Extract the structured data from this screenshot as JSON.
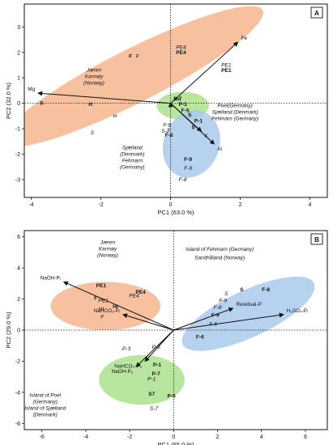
{
  "chart_data": [
    {
      "type": "scatter",
      "panel_label": "A",
      "xlabel": "PC1 (63.0 %)",
      "ylabel": "PC2 (32.0 %)",
      "xlim": [
        -4.2,
        4.5
      ],
      "ylim": [
        -3.7,
        3.9
      ],
      "xticks": [
        -4,
        -2,
        0,
        2,
        4
      ],
      "yticks": [
        3,
        2,
        1,
        0,
        -1,
        -2,
        -3
      ],
      "ellipses": [
        {
          "color": "#f5b38a",
          "cx": -1.1,
          "cy": 1.05,
          "rx": 4.2,
          "ry": 1.05,
          "angle_deg": 27
        },
        {
          "color": "#a8e08a",
          "cx": 0.35,
          "cy": -0.1,
          "rx": 0.75,
          "ry": 0.55,
          "angle_deg": 0
        },
        {
          "color": "#a6c8ec",
          "cx": 0.6,
          "cy": -1.6,
          "rx": 0.8,
          "ry": 1.35,
          "angle_deg": -20
        }
      ],
      "loadings": [
        {
          "label": "Fe",
          "x": 1.93,
          "y": 2.4
        },
        {
          "label": "Mg",
          "x": -3.8,
          "y": 0.4
        },
        {
          "label": "Mn",
          "x": 0.0,
          "y": 0.01
        },
        {
          "label": "K",
          "x": 0.88,
          "y": -1.1
        },
        {
          "label": "Al",
          "x": 1.25,
          "y": -1.6
        }
      ],
      "scores": [
        {
          "label": "F",
          "x": -1.15,
          "y": 1.85,
          "bold": true,
          "italic": false
        },
        {
          "label": "F",
          "x": -0.95,
          "y": 1.85,
          "bold": false,
          "italic": true
        },
        {
          "label": "PE4",
          "x": 0.3,
          "y": 2.2,
          "bold": false,
          "italic": true
        },
        {
          "label": "PE4",
          "x": 0.3,
          "y": 2.0,
          "bold": true,
          "italic": false
        },
        {
          "label": "PE1",
          "x": 1.6,
          "y": 1.5,
          "bold": false,
          "italic": true
        },
        {
          "label": "PE1",
          "x": 1.6,
          "y": 1.3,
          "bold": true,
          "italic": false
        },
        {
          "label": "S",
          "x": -3.7,
          "y": 0.0,
          "bold": true,
          "italic": false
        },
        {
          "label": "H",
          "x": -2.3,
          "y": -0.05,
          "bold": true,
          "italic": false
        },
        {
          "label": "H",
          "x": -1.6,
          "y": -0.5,
          "bold": false,
          "italic": true
        },
        {
          "label": "S",
          "x": -2.25,
          "y": -1.15,
          "bold": false,
          "italic": true
        },
        {
          "label": "S-7",
          "x": 0.2,
          "y": 0.18,
          "bold": true,
          "italic": false
        },
        {
          "label": "P-3",
          "x": 0.35,
          "y": -0.05,
          "bold": true,
          "italic": false
        },
        {
          "label": "F-5",
          "x": 0.42,
          "y": -0.28,
          "bold": true,
          "italic": false
        },
        {
          "label": "S",
          "x": 0.55,
          "y": -0.45,
          "bold": true,
          "italic": false
        },
        {
          "label": "P-1",
          "x": 0.8,
          "y": -0.7,
          "bold": true,
          "italic": false
        },
        {
          "label": "5",
          "x": 0.65,
          "y": -0.95,
          "bold": true,
          "italic": false
        },
        {
          "label": "F-6",
          "x": -0.1,
          "y": -0.85,
          "bold": false,
          "italic": true
        },
        {
          "label": "S-7",
          "x": -0.15,
          "y": -1.1,
          "bold": false,
          "italic": true
        },
        {
          "label": "F-8",
          "x": -0.05,
          "y": -1.25,
          "bold": true,
          "italic": false
        },
        {
          "label": "F-9",
          "x": 0.5,
          "y": -2.2,
          "bold": true,
          "italic": false
        },
        {
          "label": "F-9",
          "x": 0.5,
          "y": -2.55,
          "bold": false,
          "italic": true
        },
        {
          "label": "F-8",
          "x": 0.35,
          "y": -3.0,
          "bold": false,
          "italic": true
        }
      ],
      "group_labels": [
        {
          "lines": [
            "Jæren",
            "Karmøy",
            "(Norway)"
          ],
          "x": -2.2,
          "y": 1.25,
          "italic": true,
          "bold": false
        },
        {
          "lines": [
            "Poel(Germany)",
            "Sjælland (Denmark)",
            "Fehmarn (Germany)"
          ],
          "x": 1.85,
          "y": -0.15,
          "italic": true,
          "bold": false
        },
        {
          "lines": [
            "Sjælland",
            "(Denmark)",
            "Fehmarn",
            "(Germany)"
          ],
          "x": -1.1,
          "y": -1.8,
          "italic": true,
          "bold": false
        }
      ]
    },
    {
      "type": "scatter",
      "panel_label": "B",
      "xlabel": "PC1 (65.0 %)",
      "ylabel": "PC2 (29.0 %)",
      "xlim": [
        -6.8,
        7.0
      ],
      "ylim": [
        -6.4,
        6.4
      ],
      "xticks": [
        -6,
        -4,
        -2,
        0,
        2,
        4,
        6
      ],
      "yticks": [
        6,
        4,
        2,
        0,
        -2,
        -4,
        -6
      ],
      "ellipses": [
        {
          "color": "#f5b38a",
          "cx": -3.1,
          "cy": 1.55,
          "rx": 2.5,
          "ry": 1.55,
          "angle_deg": 0
        },
        {
          "color": "#a6c8ec",
          "cx": 3.4,
          "cy": 1.05,
          "rx": 3.3,
          "ry": 1.5,
          "angle_deg": 25
        },
        {
          "color": "#a8e08a",
          "cx": -1.45,
          "cy": -3.2,
          "rx": 1.95,
          "ry": 1.6,
          "angle_deg": 0
        }
      ],
      "loadings": [
        {
          "label": "NaOH-Pᵢ",
          "x": -5.0,
          "y": 3.1
        },
        {
          "label": "NaHCO₃-Pᵢ",
          "x": -2.3,
          "y": 1.0
        },
        {
          "label": "Residual-P",
          "x": 2.7,
          "y": 1.4
        },
        {
          "label": "H₂SO₄-Pᵢ",
          "x": 5.0,
          "y": 1.0
        },
        {
          "label": "NaHCO₃-Pₒ",
          "x": -1.3,
          "y": -2.0
        },
        {
          "label": "NaOH-Pₒ",
          "x": -1.7,
          "y": -2.35
        }
      ],
      "scores": [
        {
          "label": "PE1",
          "x": -3.3,
          "y": 2.85,
          "bold": true,
          "italic": false
        },
        {
          "label": "PE4",
          "x": -1.5,
          "y": 2.45,
          "bold": true,
          "italic": false
        },
        {
          "label": "PE4",
          "x": -1.8,
          "y": 2.2,
          "bold": false,
          "italic": true
        },
        {
          "label": "F",
          "x": -3.55,
          "y": 2.05,
          "bold": true,
          "italic": false
        },
        {
          "label": "PE1",
          "x": -3.2,
          "y": 1.9,
          "bold": false,
          "italic": true
        },
        {
          "label": "HI",
          "x": -2.65,
          "y": 1.5,
          "bold": true,
          "italic": false
        },
        {
          "label": "HI",
          "x": -3.3,
          "y": 1.35,
          "bold": false,
          "italic": true
        },
        {
          "label": "F",
          "x": -3.25,
          "y": 0.85,
          "bold": false,
          "italic": true
        },
        {
          "label": "S",
          "x": 3.1,
          "y": 2.6,
          "bold": true,
          "italic": false
        },
        {
          "label": "F-8",
          "x": 4.2,
          "y": 2.6,
          "bold": true,
          "italic": false
        },
        {
          "label": "S",
          "x": 2.4,
          "y": 2.35,
          "bold": false,
          "italic": true
        },
        {
          "label": "F-9",
          "x": 2.25,
          "y": 1.9,
          "bold": false,
          "italic": true
        },
        {
          "label": "F-8",
          "x": 2.0,
          "y": 1.45,
          "bold": false,
          "italic": true
        },
        {
          "label": "F-9",
          "x": 1.9,
          "y": 0.95,
          "bold": true,
          "italic": false
        },
        {
          "label": "F-6",
          "x": 1.8,
          "y": 0.4,
          "bold": false,
          "italic": true
        },
        {
          "label": "F-6",
          "x": 1.2,
          "y": -0.45,
          "bold": true,
          "italic": false
        },
        {
          "label": "P-3",
          "x": -2.15,
          "y": -1.2,
          "bold": false,
          "italic": true
        },
        {
          "label": "P-5",
          "x": -0.8,
          "y": -1.1,
          "bold": false,
          "italic": true
        },
        {
          "label": "P-1",
          "x": -0.75,
          "y": -2.25,
          "bold": true,
          "italic": false
        },
        {
          "label": "P-7",
          "x": -0.8,
          "y": -2.8,
          "bold": true,
          "italic": false
        },
        {
          "label": "P-1",
          "x": -1.0,
          "y": -3.15,
          "bold": false,
          "italic": true
        },
        {
          "label": "S7",
          "x": -1.0,
          "y": -4.1,
          "bold": true,
          "italic": false
        },
        {
          "label": "P-5",
          "x": -0.1,
          "y": -4.25,
          "bold": true,
          "italic": false
        },
        {
          "label": "S-7",
          "x": -0.9,
          "y": -5.05,
          "bold": false,
          "italic": true
        }
      ],
      "group_labels": [
        {
          "lines": [
            "Jæren",
            "Karmøy",
            "(Norway)"
          ],
          "x": -3.0,
          "y": 5.55,
          "italic": true,
          "bold": false
        },
        {
          "lines": [
            "Island of Fehmarn  (Germany)"
          ],
          "x": 2.1,
          "y": 5.1,
          "italic": true,
          "bold": false
        },
        {
          "lines": [
            "Sandhåland  (Norway)"
          ],
          "x": 2.1,
          "y": 4.55,
          "italic": false,
          "bold": false
        },
        {
          "lines": [
            "Island of Poel",
            "(Germany)",
            "Island of Sjælland",
            "(Denmark)"
          ],
          "x": -5.85,
          "y": -4.3,
          "italic": true,
          "bold": false
        }
      ]
    }
  ]
}
